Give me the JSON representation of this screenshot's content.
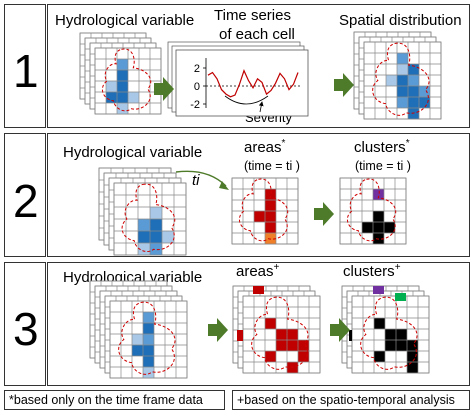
{
  "rows": [
    {
      "number": "1",
      "labels": {
        "variable": "Hydrological variable",
        "timeseries": "Time series of each cell",
        "timeseries_line1": "Time series",
        "timeseries_line2": "of each cell",
        "spatial": "Spatial distribution",
        "severity": "Severity"
      },
      "chart_ticks": [
        "2",
        "0",
        "-2"
      ]
    },
    {
      "number": "2",
      "labels": {
        "variable": "Hydrological variable",
        "ti": "ti",
        "areas": "areas",
        "areas_mark": "*",
        "areas_time": "(time = ti )",
        "clusters": "clusters",
        "clusters_mark": "*",
        "clusters_time": "(time = ti )"
      }
    },
    {
      "number": "3",
      "labels": {
        "variable": "Hydrological variable",
        "areas": "areas",
        "areas_mark": "+",
        "clusters": "clusters",
        "clusters_mark": "+"
      }
    }
  ],
  "footnotes": {
    "left": "*based only on the time frame data",
    "right": "+based on the spatio-temporal analysis"
  },
  "colors": {
    "blue_dark": "#1f6fb8",
    "blue_mid": "#5a9bd5",
    "blue_light": "#a9c8e8",
    "red": "#c00000",
    "orange": "#f07f2a",
    "purple": "#7030a0",
    "green": "#00b050",
    "black": "#000000",
    "arrow_green": "#4e7b2a",
    "outline_red": "#d00000"
  }
}
